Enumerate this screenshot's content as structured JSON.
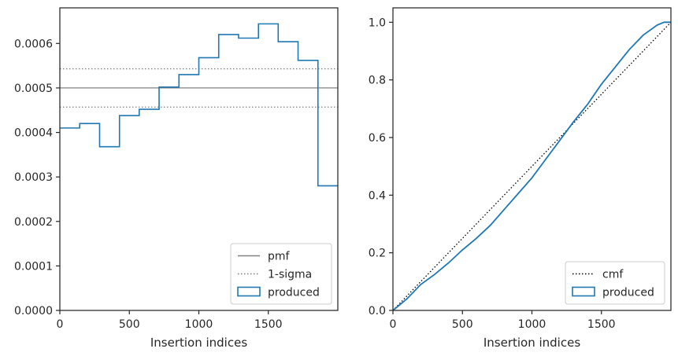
{
  "chart_data": [
    {
      "type": "histogram",
      "xlabel": "Insertion indices",
      "ylabel": "",
      "xlim": [
        0,
        2000
      ],
      "ylim": [
        0,
        0.00068
      ],
      "xticks": [
        0,
        500,
        1000,
        1500
      ],
      "xtick_labels": [
        "0",
        "500",
        "1000",
        "1500"
      ],
      "yticks": [
        0,
        0.0001,
        0.0002,
        0.0003,
        0.0004,
        0.0005,
        0.0006
      ],
      "ytick_labels": [
        "0.0000",
        "0.0001",
        "0.0002",
        "0.0003",
        "0.0004",
        "0.0005",
        "0.0006"
      ],
      "bin_edges": [
        0,
        143,
        286,
        429,
        571,
        714,
        857,
        1000,
        1143,
        1286,
        1429,
        1571,
        1714,
        1857,
        2000
      ],
      "series": [
        {
          "name": "produced",
          "style": "step",
          "color": "#1f77b4",
          "values": [
            0.00041,
            0.00042,
            0.000368,
            0.000438,
            0.000452,
            0.000502,
            0.00053,
            0.000568,
            0.00062,
            0.000612,
            0.000644,
            0.000604,
            0.000562,
            0.00028
          ]
        }
      ],
      "reference_lines": [
        {
          "name": "pmf",
          "value": 0.0005,
          "style": "solid",
          "color": "#808080"
        },
        {
          "name": "1-sigma",
          "values": [
            0.000543,
            0.000457
          ],
          "style": "dotted",
          "color": "#808080"
        }
      ],
      "legend": {
        "placement": "lower-right",
        "entries": [
          {
            "label": "pmf",
            "kind": "line-solid",
            "color": "#808080"
          },
          {
            "label": "1-sigma",
            "kind": "line-dotted",
            "color": "#808080"
          },
          {
            "label": "produced",
            "kind": "patch",
            "color": "#1f77b4"
          }
        ]
      }
    },
    {
      "type": "line",
      "xlabel": "Insertion indices",
      "ylabel": "",
      "xlim": [
        0,
        2000
      ],
      "ylim": [
        0,
        1.05
      ],
      "xticks": [
        0,
        500,
        1000,
        1500
      ],
      "xtick_labels": [
        "0",
        "500",
        "1000",
        "1500"
      ],
      "yticks": [
        0,
        0.2,
        0.4,
        0.6,
        0.8,
        1.0
      ],
      "ytick_labels": [
        "0.0",
        "0.2",
        "0.4",
        "0.6",
        "0.8",
        "1.0"
      ],
      "series": [
        {
          "name": "cmf",
          "style": "dotted",
          "color": "#000000",
          "x": [
            0,
            2000
          ],
          "y": [
            0,
            1.0
          ]
        },
        {
          "name": "produced",
          "style": "solid",
          "color": "#1f77b4",
          "x": [
            0,
            100,
            200,
            300,
            400,
            500,
            600,
            700,
            800,
            900,
            1000,
            1100,
            1200,
            1300,
            1400,
            1500,
            1600,
            1700,
            1800,
            1900,
            1950,
            2000
          ],
          "y": [
            0,
            0.04,
            0.09,
            0.125,
            0.165,
            0.21,
            0.25,
            0.295,
            0.35,
            0.405,
            0.46,
            0.525,
            0.59,
            0.655,
            0.715,
            0.785,
            0.845,
            0.905,
            0.955,
            0.99,
            1.0,
            1.0
          ]
        }
      ],
      "legend": {
        "placement": "lower-right",
        "entries": [
          {
            "label": "cmf",
            "kind": "line-dotted",
            "color": "#000000"
          },
          {
            "label": "produced",
            "kind": "patch",
            "color": "#1f77b4"
          }
        ]
      }
    }
  ]
}
